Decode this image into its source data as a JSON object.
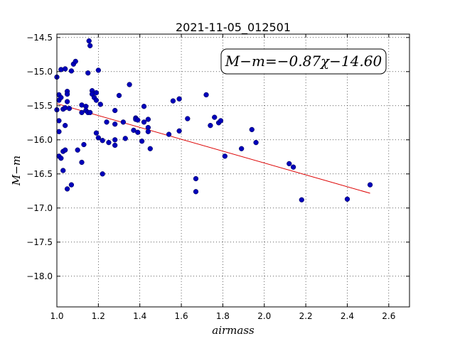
{
  "chart_data": {
    "type": "scatter",
    "title": "2021-11-05_012501",
    "xlabel": "airmass",
    "ylabel": "M−m",
    "xlim": [
      1.0,
      2.7
    ],
    "ylim": [
      -18.45,
      -14.45
    ],
    "y_inverted": true,
    "grid": true,
    "x_ticks": [
      "1.0",
      "1.2",
      "1.4",
      "1.6",
      "1.8",
      "2.0",
      "2.2",
      "2.4",
      "2.6"
    ],
    "y_ticks": [
      "−14.5",
      "−15.0",
      "−15.5",
      "−16.0",
      "−16.5",
      "−17.0",
      "−17.5",
      "−18.0"
    ],
    "annotation": "M−m=−0.87χ−14.60",
    "fit": {
      "slope": -0.87,
      "intercept": -14.6,
      "x_range": [
        1.0,
        2.51
      ],
      "color": "#dd0000"
    },
    "point_color": "#0000bb",
    "points": [
      [
        1.0,
        -15.08
      ],
      [
        1.0,
        -15.56
      ],
      [
        1.01,
        -15.42
      ],
      [
        1.01,
        -15.34
      ],
      [
        1.01,
        -15.72
      ],
      [
        1.01,
        -15.88
      ],
      [
        1.01,
        -16.24
      ],
      [
        1.02,
        -16.27
      ],
      [
        1.02,
        -14.97
      ],
      [
        1.02,
        -15.38
      ],
      [
        1.03,
        -15.55
      ],
      [
        1.03,
        -16.17
      ],
      [
        1.03,
        -16.45
      ],
      [
        1.04,
        -15.53
      ],
      [
        1.04,
        -16.15
      ],
      [
        1.04,
        -14.96
      ],
      [
        1.04,
        -15.79
      ],
      [
        1.05,
        -15.29
      ],
      [
        1.05,
        -15.33
      ],
      [
        1.05,
        -15.44
      ],
      [
        1.05,
        -16.72
      ],
      [
        1.06,
        -15.54
      ],
      [
        1.07,
        -16.66
      ],
      [
        1.07,
        -14.99
      ],
      [
        1.08,
        -14.89
      ],
      [
        1.09,
        -14.85
      ],
      [
        1.1,
        -16.15
      ],
      [
        1.12,
        -15.49
      ],
      [
        1.12,
        -15.6
      ],
      [
        1.12,
        -16.33
      ],
      [
        1.13,
        -16.07
      ],
      [
        1.14,
        -15.51
      ],
      [
        1.14,
        -15.57
      ],
      [
        1.15,
        -15.02
      ],
      [
        1.15,
        -15.6
      ],
      [
        1.155,
        -14.55
      ],
      [
        1.16,
        -14.62
      ],
      [
        1.16,
        -15.6
      ],
      [
        1.17,
        -15.28
      ],
      [
        1.17,
        -15.33
      ],
      [
        1.18,
        -15.38
      ],
      [
        1.19,
        -15.42
      ],
      [
        1.19,
        -15.31
      ],
      [
        1.19,
        -15.9
      ],
      [
        1.2,
        -15.97
      ],
      [
        1.2,
        -14.98
      ],
      [
        1.21,
        -15.48
      ],
      [
        1.22,
        -16.01
      ],
      [
        1.22,
        -16.5
      ],
      [
        1.24,
        -15.74
      ],
      [
        1.25,
        -16.04
      ],
      [
        1.28,
        -15.57
      ],
      [
        1.28,
        -15.77
      ],
      [
        1.28,
        -16.0
      ],
      [
        1.28,
        -16.08
      ],
      [
        1.3,
        -15.35
      ],
      [
        1.32,
        -15.74
      ],
      [
        1.33,
        -15.98
      ],
      [
        1.35,
        -15.19
      ],
      [
        1.37,
        -15.86
      ],
      [
        1.38,
        -15.68
      ],
      [
        1.38,
        -15.7
      ],
      [
        1.39,
        -15.71
      ],
      [
        1.39,
        -15.89
      ],
      [
        1.41,
        -16.02
      ],
      [
        1.42,
        -15.74
      ],
      [
        1.42,
        -15.51
      ],
      [
        1.44,
        -15.7
      ],
      [
        1.44,
        -15.82
      ],
      [
        1.44,
        -15.88
      ],
      [
        1.45,
        -16.13
      ],
      [
        1.54,
        -15.92
      ],
      [
        1.56,
        -15.43
      ],
      [
        1.59,
        -15.4
      ],
      [
        1.59,
        -15.87
      ],
      [
        1.63,
        -15.69
      ],
      [
        1.67,
        -16.57
      ],
      [
        1.67,
        -16.76
      ],
      [
        1.72,
        -15.34
      ],
      [
        1.74,
        -15.79
      ],
      [
        1.76,
        -15.67
      ],
      [
        1.78,
        -15.75
      ],
      [
        1.79,
        -15.72
      ],
      [
        1.81,
        -16.24
      ],
      [
        1.89,
        -16.13
      ],
      [
        1.94,
        -15.85
      ],
      [
        1.96,
        -16.04
      ],
      [
        2.12,
        -16.35
      ],
      [
        2.14,
        -16.4
      ],
      [
        2.18,
        -16.88
      ],
      [
        2.4,
        -16.87
      ],
      [
        2.51,
        -16.66
      ]
    ]
  }
}
